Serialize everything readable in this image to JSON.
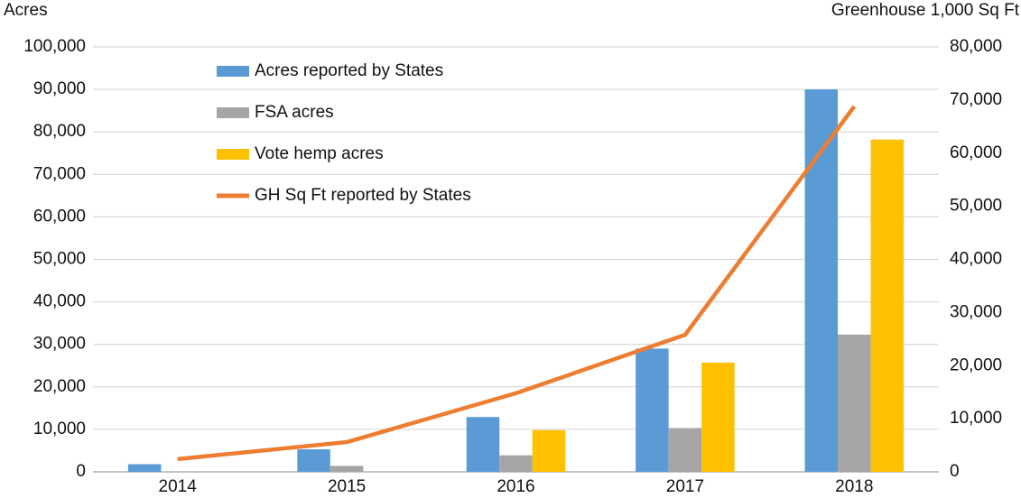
{
  "chart_data": {
    "type": "bar",
    "y_label": "Acres",
    "y2_label": "Greenhouse 1,000 Sq Ft",
    "categories": [
      "2014",
      "2015",
      "2016",
      "2017",
      "2018"
    ],
    "series": [
      {
        "name": "Acres reported by States",
        "color": "#5b9bd5",
        "values": [
          1800,
          5300,
          12900,
          29000,
          90000
        ]
      },
      {
        "name": "FSA acres",
        "color": "#a5a5a5",
        "values": [
          null,
          1400,
          3900,
          10300,
          32300
        ]
      },
      {
        "name": "Vote hemp acres",
        "color": "#ffc000",
        "values": [
          null,
          null,
          9800,
          25700,
          78200
        ]
      },
      {
        "name": "GH Sq Ft reported by States",
        "color": "#ed7d31",
        "type": "line",
        "axis": "y2",
        "values": [
          2400,
          5600,
          14800,
          25800,
          68800
        ]
      }
    ],
    "ylim": [
      0,
      100000
    ],
    "yticks": [
      0,
      {
        "value": 10000,
        "label": "10,000"
      },
      {
        "value": 20000,
        "label": "20,000"
      },
      {
        "value": 30000,
        "label": "30,000"
      },
      {
        "value": 40000,
        "label": "40,000"
      },
      {
        "value": 50000,
        "label": "50,000"
      },
      {
        "value": 60000,
        "label": "60,000"
      },
      {
        "value": 70000,
        "label": "70,000"
      },
      {
        "value": 80000,
        "label": "80,000"
      },
      {
        "value": 90000,
        "label": "90,000"
      },
      {
        "value": 100000,
        "label": "100,000"
      }
    ],
    "y2lim": [
      0,
      80000
    ],
    "y2ticks": [
      0,
      {
        "value": 10000,
        "label": "10,000"
      },
      {
        "value": 20000,
        "label": "20,000"
      },
      {
        "value": 30000,
        "label": "30,000"
      },
      {
        "value": 40000,
        "label": "40,000"
      },
      {
        "value": 50000,
        "label": "50,000"
      },
      {
        "value": 60000,
        "label": "60,000"
      },
      {
        "value": 70000,
        "label": "70,000"
      },
      {
        "value": 80000,
        "label": "80,000"
      }
    ],
    "grid": true
  }
}
